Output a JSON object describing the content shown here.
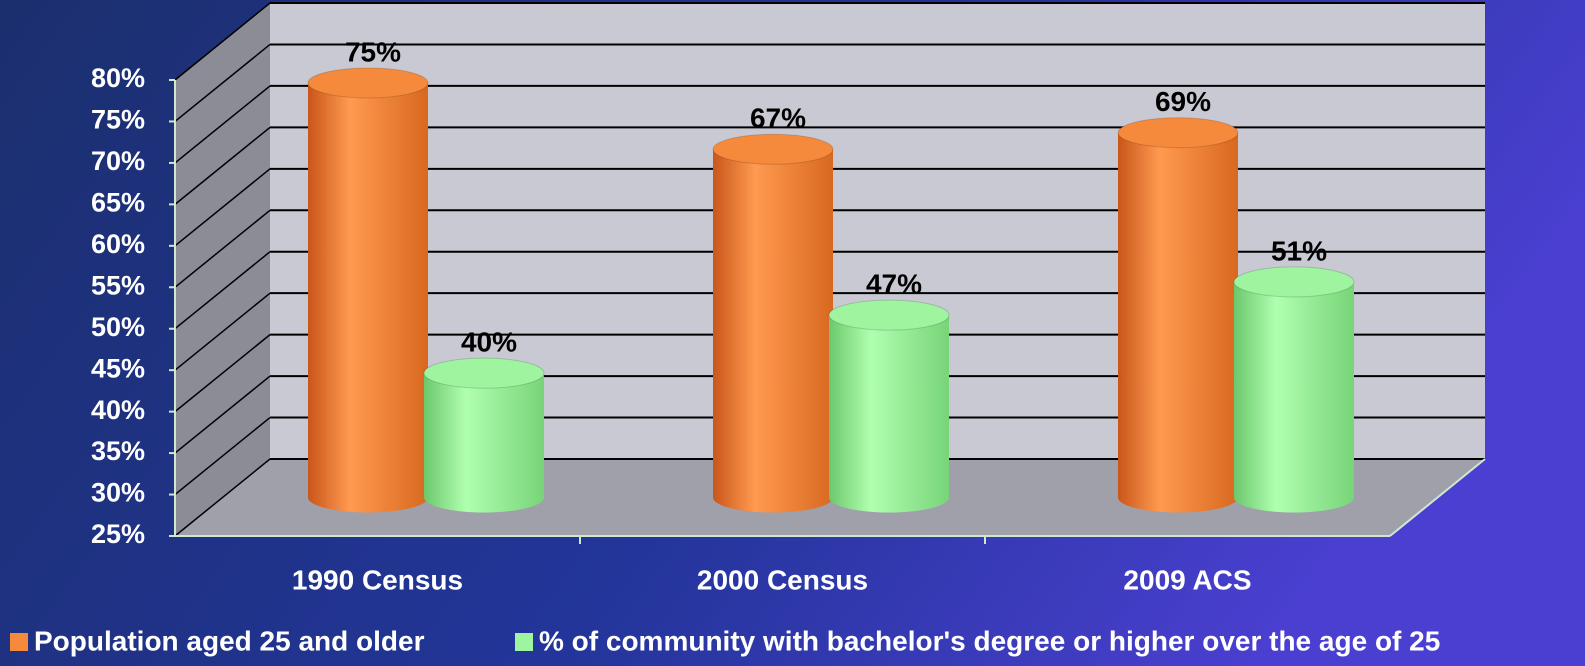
{
  "chart_data": {
    "type": "bar3d",
    "categories": [
      "1990 Census",
      "2000 Census",
      "2009 ACS"
    ],
    "series": [
      {
        "name": "Population aged 25 and older",
        "color": "#f58a3c",
        "values": [
          75,
          67,
          69
        ],
        "value_labels": [
          "75%",
          "67%",
          "69%"
        ]
      },
      {
        "name": "% of community with bachelor's degree or higher over the age of 25",
        "color": "#9ff59f",
        "values": [
          40,
          47,
          51
        ],
        "value_labels": [
          "40%",
          "47%",
          "51%"
        ]
      }
    ],
    "ylim": [
      25,
      80
    ],
    "yticks": [
      {
        "value": 25,
        "label": "25%"
      },
      {
        "value": 30,
        "label": "30%"
      },
      {
        "value": 35,
        "label": "35%"
      },
      {
        "value": 40,
        "label": "40%"
      },
      {
        "value": 45,
        "label": "45%"
      },
      {
        "value": 50,
        "label": "50%"
      },
      {
        "value": 55,
        "label": "55%"
      },
      {
        "value": 60,
        "label": "60%"
      },
      {
        "value": 65,
        "label": "65%"
      },
      {
        "value": 70,
        "label": "70%"
      },
      {
        "value": 75,
        "label": "75%"
      },
      {
        "value": 80,
        "label": "80%"
      }
    ],
    "grid": true,
    "legend": "bottom"
  }
}
